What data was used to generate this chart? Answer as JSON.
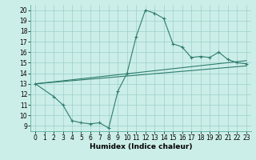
{
  "xlabel": "Humidex (Indice chaleur)",
  "bg_color": "#cceee8",
  "line_color": "#2e7d6e",
  "grid_color": "#9acfcc",
  "xlim": [
    -0.5,
    23.5
  ],
  "ylim": [
    8.5,
    20.5
  ],
  "xticks": [
    0,
    1,
    2,
    3,
    4,
    5,
    6,
    7,
    8,
    9,
    10,
    11,
    12,
    13,
    14,
    15,
    16,
    17,
    18,
    19,
    20,
    21,
    22,
    23
  ],
  "yticks": [
    9,
    10,
    11,
    12,
    13,
    14,
    15,
    16,
    17,
    18,
    19,
    20
  ],
  "curve1_x": [
    0,
    2,
    3,
    4,
    5,
    6,
    7,
    8,
    9,
    10,
    11,
    12,
    13,
    14,
    15,
    16,
    17,
    18,
    19,
    20,
    21,
    22,
    23
  ],
  "curve1_y": [
    13,
    11.8,
    11.0,
    9.5,
    9.3,
    9.2,
    9.3,
    8.8,
    12.3,
    14.0,
    17.5,
    20.0,
    19.7,
    19.2,
    16.8,
    16.5,
    15.5,
    15.6,
    15.5,
    16.0,
    15.3,
    15.0,
    14.9
  ],
  "line1_x": [
    0,
    23
  ],
  "line1_y": [
    13.0,
    15.2
  ],
  "line2_x": [
    0,
    23
  ],
  "line2_y": [
    13.0,
    14.7
  ],
  "tick_fontsize": 5.5,
  "xlabel_fontsize": 6.5
}
